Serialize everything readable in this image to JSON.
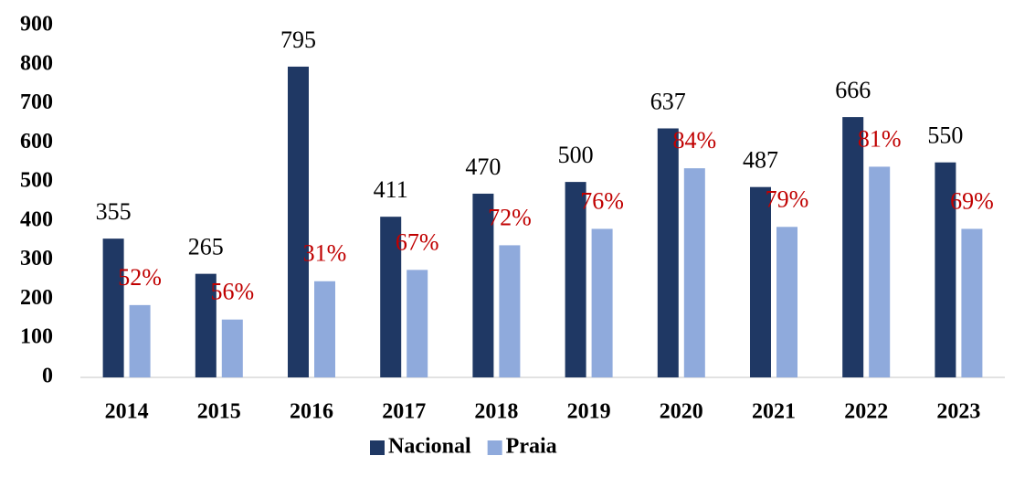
{
  "chart_data": {
    "type": "bar",
    "categories": [
      "2014",
      "2015",
      "2016",
      "2017",
      "2018",
      "2019",
      "2020",
      "2021",
      "2022",
      "2023"
    ],
    "series": [
      {
        "name": "Nacional",
        "color": "#1f3864",
        "values": [
          355,
          265,
          795,
          411,
          470,
          500,
          637,
          487,
          666,
          550
        ]
      },
      {
        "name": "Praia",
        "color": "#8faadc",
        "values": [
          185,
          148,
          246,
          275,
          338,
          380,
          535,
          385,
          539,
          380
        ],
        "annotations": [
          "52%",
          "56%",
          "31%",
          "67%",
          "72%",
          "76%",
          "84%",
          "79%",
          "81%",
          "69%"
        ]
      }
    ],
    "annotation_color": "#c00000",
    "ylim": [
      0,
      900
    ],
    "yticks": [
      0,
      100,
      200,
      300,
      400,
      500,
      600,
      700,
      800,
      900
    ],
    "grid": false,
    "legend": "bottom"
  }
}
